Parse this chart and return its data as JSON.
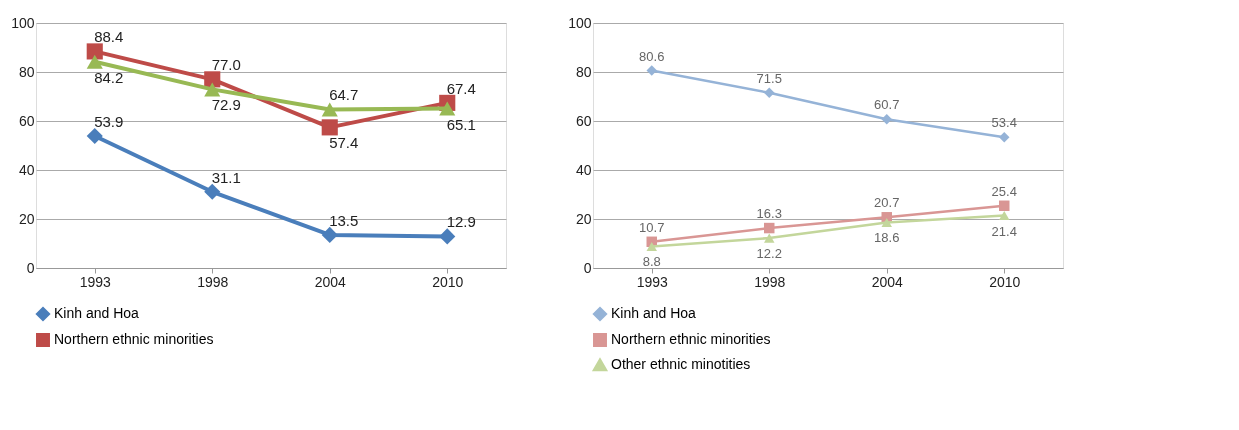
{
  "chart_data": [
    {
      "type": "line",
      "categories": [
        "1993",
        "1998",
        "2004",
        "2010"
      ],
      "ylim": [
        0,
        100
      ],
      "yticks": [
        0,
        20,
        40,
        60,
        80,
        100
      ],
      "grid": "y",
      "legend": "bottom",
      "data_labels": true,
      "series": [
        {
          "name": "Kinh and Hoa",
          "color": "#4a7ebb",
          "marker": "diamond",
          "values": [
            53.9,
            31.1,
            13.5,
            12.9
          ]
        },
        {
          "name": "Northern ethnic minorities",
          "color": "#be4b48",
          "marker": "square",
          "values": [
            88.4,
            77.0,
            57.4,
            67.4
          ],
          "value_labels": [
            "88.4",
            "77.0",
            "57.4",
            "67.4"
          ]
        },
        {
          "color": "#98b954",
          "marker": "triangle",
          "values": [
            84.2,
            72.9,
            64.7,
            65.1
          ]
        }
      ]
    },
    {
      "type": "line",
      "categories": [
        "1993",
        "1998",
        "2004",
        "2010"
      ],
      "ylim": [
        0,
        100
      ],
      "yticks": [
        0,
        20,
        40,
        60,
        80,
        100
      ],
      "grid": "y",
      "legend": "bottom",
      "data_labels": true,
      "series": [
        {
          "name": "Kinh and Hoa",
          "color": "#95b3d7",
          "marker": "diamond",
          "values": [
            80.6,
            71.5,
            60.7,
            53.4
          ]
        },
        {
          "name": "Northern ethnic minorities",
          "color": "#d99694",
          "marker": "square",
          "values": [
            10.7,
            16.3,
            20.7,
            25.4
          ]
        },
        {
          "name": "Other ethnic minotities",
          "color": "#c3d69b",
          "marker": "triangle",
          "values": [
            8.8,
            12.2,
            18.6,
            21.4
          ]
        }
      ]
    }
  ]
}
